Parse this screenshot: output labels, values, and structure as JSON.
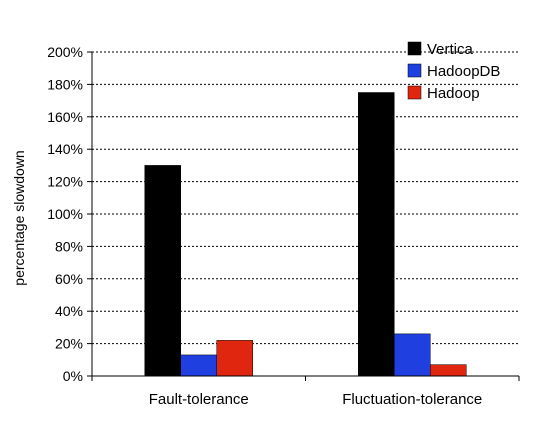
{
  "chart_data": {
    "type": "bar",
    "title": "",
    "xlabel": "",
    "ylabel": "percentage slowdown",
    "ylim": [
      0,
      200
    ],
    "y_ticks": [
      "0%",
      "20%",
      "40%",
      "60%",
      "80%",
      "100%",
      "120%",
      "140%",
      "160%",
      "180%",
      "200%"
    ],
    "categories": [
      "Fault-tolerance",
      "Fluctuation-tolerance"
    ],
    "series": [
      {
        "name": "Vertica",
        "color": "#000000",
        "values": [
          130,
          175
        ]
      },
      {
        "name": "HadoopDB",
        "color": "#1f3fe0",
        "values": [
          13,
          26
        ]
      },
      {
        "name": "Hadoop",
        "color": "#e0260e",
        "values": [
          22,
          7
        ]
      }
    ],
    "grid": true,
    "legend_position": "top-right"
  }
}
